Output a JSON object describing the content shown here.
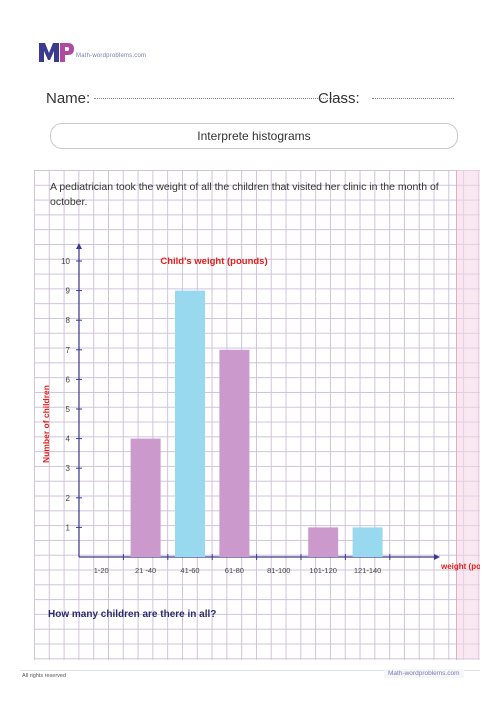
{
  "brand": {
    "logo_text": "MP",
    "site": "Math-wordproblems.com",
    "colors": {
      "m": "#3a3a8e",
      "p": "#b04aa0"
    }
  },
  "header": {
    "name_label": "Name:",
    "class_label": "Class:"
  },
  "worksheet": {
    "title": "Interprete histograms",
    "prompt": "A pediatrician took the weight of all the children that visited her clinic in the month of october.",
    "question": "How many children are there in all?"
  },
  "chart_data": {
    "type": "bar",
    "title": "Child's weight (pounds)",
    "xlabel": "weight (pounds)",
    "ylabel": "Number of children",
    "categories": [
      "1-20",
      "21 -40",
      "41-60",
      "61-80",
      "81-100",
      "101-120",
      "121-140"
    ],
    "values": [
      0,
      4,
      9,
      7,
      0,
      1,
      1
    ],
    "bar_colors": [
      "#cc99cc",
      "#cc99cc",
      "#99d9ef",
      "#cc99cc",
      "#cc99cc",
      "#cc99cc",
      "#99d9ef"
    ],
    "ylim": [
      0,
      10
    ],
    "yticks": [
      1,
      2,
      3,
      4,
      5,
      6,
      7,
      8,
      9,
      10
    ],
    "grid": true,
    "title_color": "#e0201b",
    "axis_label_color": "#e0201b"
  },
  "footer": {
    "rights": "All rights reserved",
    "site": "Math-wordproblems.com"
  }
}
